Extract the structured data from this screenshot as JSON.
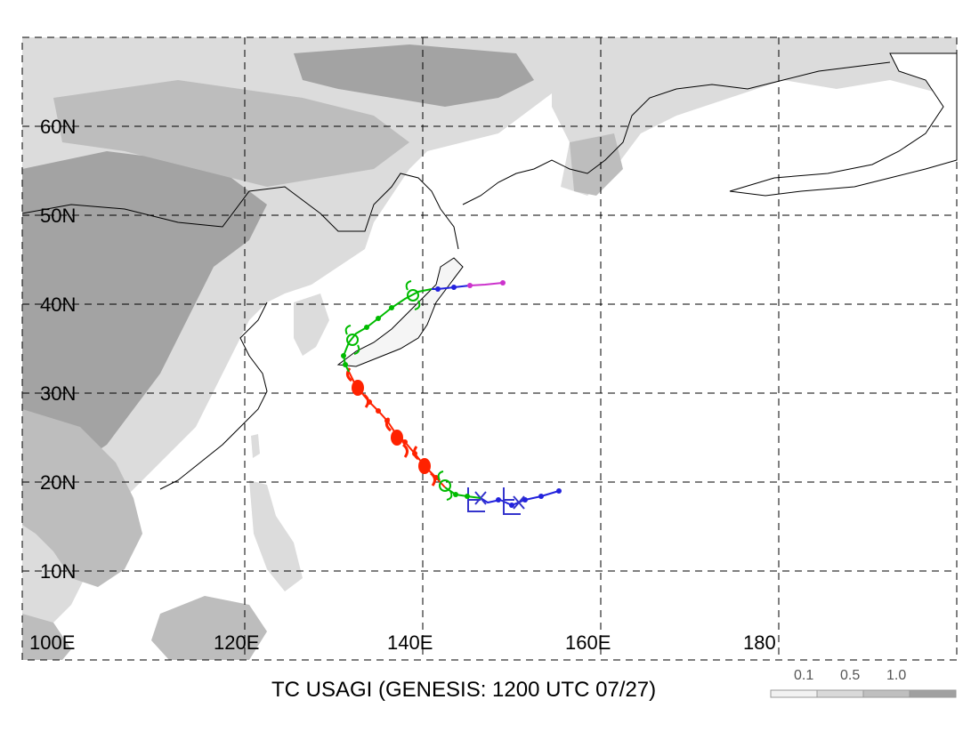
{
  "map": {
    "title": "TC USAGI (GENESIS: 1200 UTC 07/27)",
    "lat_labels": [
      "60N",
      "50N",
      "40N",
      "30N",
      "20N",
      "10N"
    ],
    "lon_labels": [
      "100E",
      "120E",
      "140E",
      "160E",
      "180"
    ],
    "legend_labels": [
      "0.1",
      "0.5",
      "1.0"
    ],
    "legend_colors": [
      "#f2f2f2",
      "#d9d9d9",
      "#bfbfbf",
      "#a0a0a0"
    ],
    "land_colors": {
      "light": "#dcdcdc",
      "mid": "#bdbdbd",
      "dark": "#a3a3a3"
    },
    "track_colors": {
      "red": "#ff2200",
      "green": "#00bb00",
      "blue": "#2222dd",
      "magenta": "#cc33cc"
    }
  }
}
